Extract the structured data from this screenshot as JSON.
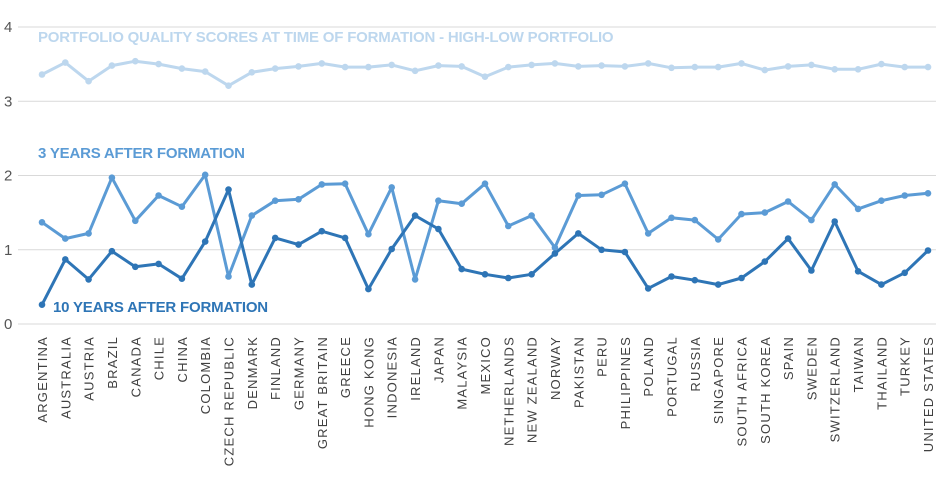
{
  "chart_data": {
    "type": "line",
    "ylim": [
      0,
      4
    ],
    "yticks": [
      "0",
      "1",
      "2",
      "3",
      "4"
    ],
    "grid": true,
    "categories": [
      "ARGENTINA",
      "AUSTRALIA",
      "AUSTRIA",
      "BRAZIL",
      "CANADA",
      "CHILE",
      "CHINA",
      "COLOMBIA",
      "CZECH REPUBLIC",
      "DENMARK",
      "FINLAND",
      "GERMANY",
      "GREAT BRITAIN",
      "GREECE",
      "HONG KONG",
      "INDONESIA",
      "IRELAND",
      "JAPAN",
      "MALAYSIA",
      "MEXICO",
      "NETHERLANDS",
      "NEW ZEALAND",
      "NORWAY",
      "PAKISTAN",
      "PERU",
      "PHILIPPINES",
      "POLAND",
      "PORTUGAL",
      "RUSSIA",
      "SINGAPORE",
      "SOUTH AFRICA",
      "SOUTH KOREA",
      "SPAIN",
      "SWEDEN",
      "SWITZERLAND",
      "TAIWAN",
      "THAILAND",
      "TURKEY",
      "UNITED STATES"
    ],
    "series": [
      {
        "name": "PORTFOLIO QUALITY SCORES AT TIME OF FORMATION - HIGH-LOW PORTFOLIO",
        "color": "#bdd7ee",
        "values": [
          3.36,
          3.52,
          3.27,
          3.48,
          3.54,
          3.5,
          3.44,
          3.4,
          3.21,
          3.39,
          3.44,
          3.47,
          3.51,
          3.46,
          3.46,
          3.49,
          3.41,
          3.48,
          3.47,
          3.33,
          3.46,
          3.49,
          3.51,
          3.47,
          3.48,
          3.47,
          3.51,
          3.45,
          3.46,
          3.46,
          3.51,
          3.42,
          3.47,
          3.49,
          3.43,
          3.43,
          3.5,
          3.46,
          3.46
        ]
      },
      {
        "name": "3 YEARS AFTER FORMATION",
        "color": "#5b9bd5",
        "values": [
          1.37,
          1.15,
          1.22,
          1.97,
          1.39,
          1.73,
          1.58,
          2.01,
          0.64,
          1.46,
          1.66,
          1.68,
          1.88,
          1.89,
          1.21,
          1.84,
          0.6,
          1.66,
          1.62,
          1.89,
          1.32,
          1.46,
          1.03,
          1.73,
          1.74,
          1.89,
          1.22,
          1.43,
          1.4,
          1.14,
          1.48,
          1.5,
          1.65,
          1.4,
          1.88,
          1.55,
          1.66,
          1.73,
          1.76
        ]
      },
      {
        "name": "10 YEARS AFTER FORMATION",
        "color": "#2e75b6",
        "values": [
          0.26,
          0.87,
          0.6,
          0.98,
          0.77,
          0.81,
          0.61,
          1.11,
          1.81,
          0.53,
          1.16,
          1.07,
          1.25,
          1.16,
          0.47,
          1.01,
          1.46,
          1.28,
          0.74,
          0.67,
          0.62,
          0.67,
          0.95,
          1.22,
          1.0,
          0.97,
          0.48,
          0.64,
          0.59,
          0.53,
          0.62,
          0.84,
          1.15,
          0.72,
          1.38,
          0.71,
          0.53,
          0.69,
          0.99
        ]
      }
    ]
  }
}
